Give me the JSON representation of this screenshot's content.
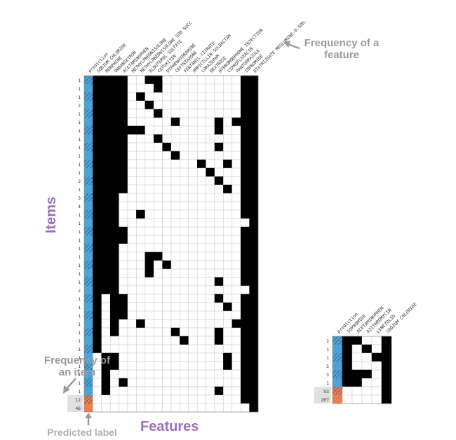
{
  "annotations": {
    "frequency_of_feature": "Frequency of a feature",
    "frequency_of_item": "Frequency of an item",
    "predicted_label": "Predicted label",
    "features": "Features",
    "items": "Items"
  },
  "colors": {
    "blue": "#4ea3d6",
    "orange": "#ec7d4e",
    "filled": "#000000",
    "grid": "#c8c8c8",
    "purple": "#9b6fbf",
    "grey": "#9a9a9a"
  },
  "left_matrix": {
    "columns": [
      "prediction",
      "SODIUM CHLORIDE",
      "MORPHINE",
      "ONDANSETRON",
      "ACETAMINOPHEN",
      "METHYLPREDNISOLONE",
      "METHYLPREDNISOLONE SOD SUCC",
      "ALBUTEROL SULFATE",
      "CEFOXITIN",
      "DIPHENHYDRAMINE",
      "CEFTRIAXONE",
      "FENTANYL CITRATE",
      "AMPICILLIN-SULBACTAM",
      "LORAZEPAM",
      "DEXTROSE",
      "HYDROMORPHONE INJECTION",
      "CIPROFLOXACIN",
      "PANTOPRAZOLE",
      "IOPROMIDE",
      "DIATRIZOATE MEGLUMINE-D.SOD."
    ],
    "rows": [
      {
        "freq": "1",
        "pred": "b",
        "h": 1,
        "c": [
          1,
          1,
          1,
          1,
          0,
          0,
          1,
          1,
          0,
          0,
          0,
          0,
          0,
          0,
          0,
          0,
          0,
          1,
          1
        ]
      },
      {
        "freq": "1",
        "pred": "b",
        "h": 0,
        "c": [
          1,
          1,
          1,
          1,
          0,
          0,
          0,
          1,
          0,
          0,
          0,
          0,
          0,
          0,
          0,
          0,
          0,
          1,
          1
        ]
      },
      {
        "freq": "1",
        "pred": "b",
        "h": 1,
        "c": [
          1,
          1,
          1,
          1,
          0,
          1,
          0,
          0,
          0,
          0,
          0,
          0,
          0,
          0,
          0,
          0,
          0,
          1,
          1
        ]
      },
      {
        "freq": "2",
        "pred": "b",
        "h": 0,
        "c": [
          1,
          1,
          1,
          1,
          0,
          0,
          1,
          0,
          0,
          0,
          0,
          0,
          0,
          0,
          0,
          0,
          0,
          1,
          1
        ]
      },
      {
        "freq": "1",
        "pred": "b",
        "h": 1,
        "c": [
          1,
          1,
          1,
          1,
          0,
          0,
          0,
          1,
          0,
          0,
          0,
          0,
          0,
          0,
          0,
          0,
          0,
          1,
          1
        ]
      },
      {
        "freq": "1",
        "pred": "b",
        "h": 0,
        "c": [
          1,
          1,
          1,
          1,
          0,
          0,
          0,
          0,
          0,
          1,
          0,
          0,
          0,
          0,
          1,
          0,
          1,
          1,
          1
        ]
      },
      {
        "freq": "1",
        "pred": "b",
        "h": 1,
        "c": [
          1,
          1,
          1,
          1,
          1,
          1,
          0,
          0,
          0,
          0,
          0,
          0,
          0,
          0,
          1,
          0,
          0,
          1,
          1
        ]
      },
      {
        "freq": "1",
        "pred": "b",
        "h": 0,
        "c": [
          1,
          1,
          1,
          1,
          0,
          0,
          0,
          1,
          0,
          0,
          0,
          0,
          0,
          0,
          0,
          0,
          0,
          1,
          1
        ]
      },
      {
        "freq": "1",
        "pred": "b",
        "h": 1,
        "c": [
          1,
          1,
          1,
          1,
          0,
          0,
          0,
          0,
          1,
          0,
          0,
          0,
          0,
          0,
          1,
          0,
          0,
          1,
          1
        ]
      },
      {
        "freq": "1",
        "pred": "b",
        "h": 0,
        "c": [
          1,
          1,
          1,
          1,
          0,
          0,
          0,
          0,
          0,
          1,
          0,
          0,
          0,
          0,
          0,
          0,
          0,
          1,
          1
        ]
      },
      {
        "freq": "1",
        "pred": "b",
        "h": 1,
        "c": [
          1,
          1,
          1,
          1,
          0,
          0,
          0,
          0,
          0,
          0,
          0,
          0,
          1,
          0,
          0,
          1,
          0,
          1,
          1
        ]
      },
      {
        "freq": "1",
        "pred": "b",
        "h": 0,
        "c": [
          1,
          1,
          1,
          1,
          0,
          0,
          0,
          0,
          0,
          0,
          0,
          0,
          0,
          1,
          0,
          0,
          0,
          1,
          1
        ]
      },
      {
        "freq": "2",
        "pred": "b",
        "h": 1,
        "c": [
          1,
          1,
          1,
          1,
          0,
          0,
          0,
          0,
          0,
          0,
          0,
          0,
          0,
          0,
          1,
          0,
          0,
          1,
          1
        ]
      },
      {
        "freq": "1",
        "pred": "b",
        "h": 0,
        "c": [
          1,
          1,
          1,
          1,
          0,
          0,
          0,
          0,
          0,
          0,
          0,
          0,
          0,
          0,
          0,
          1,
          0,
          1,
          1
        ]
      },
      {
        "freq": "3",
        "pred": "b",
        "h": 1,
        "c": [
          1,
          1,
          1,
          0,
          0,
          0,
          0,
          0,
          0,
          0,
          0,
          0,
          0,
          0,
          0,
          0,
          0,
          1,
          1
        ]
      },
      {
        "freq": "4",
        "pred": "b",
        "h": 0,
        "c": [
          1,
          1,
          1,
          0,
          0,
          0,
          0,
          0,
          0,
          0,
          0,
          0,
          0,
          0,
          0,
          0,
          0,
          1,
          1
        ]
      },
      {
        "freq": "1",
        "pred": "b",
        "h": 1,
        "c": [
          1,
          1,
          1,
          0,
          0,
          1,
          0,
          0,
          0,
          0,
          0,
          0,
          0,
          0,
          0,
          0,
          0,
          1,
          1
        ]
      },
      {
        "freq": "1",
        "pred": "b",
        "h": 0,
        "c": [
          1,
          1,
          1,
          0,
          0,
          0,
          0,
          0,
          0,
          0,
          0,
          0,
          0,
          0,
          0,
          0,
          0,
          0,
          1
        ]
      },
      {
        "freq": "1",
        "pred": "b",
        "h": 1,
        "c": [
          1,
          1,
          1,
          1,
          0,
          0,
          0,
          0,
          0,
          0,
          0,
          0,
          0,
          0,
          0,
          0,
          0,
          1,
          1
        ]
      },
      {
        "freq": "1",
        "pred": "b",
        "h": 0,
        "c": [
          1,
          1,
          1,
          1,
          0,
          0,
          0,
          0,
          0,
          0,
          0,
          0,
          0,
          0,
          0,
          0,
          0,
          1,
          1
        ]
      },
      {
        "freq": "1",
        "pred": "b",
        "h": 1,
        "c": [
          1,
          1,
          1,
          0,
          0,
          0,
          0,
          0,
          0,
          0,
          0,
          0,
          0,
          0,
          0,
          0,
          0,
          1,
          1
        ]
      },
      {
        "freq": "1",
        "pred": "b",
        "h": 0,
        "c": [
          1,
          1,
          1,
          0,
          0,
          0,
          1,
          1,
          0,
          0,
          0,
          0,
          0,
          0,
          0,
          0,
          0,
          1,
          1
        ]
      },
      {
        "freq": "1",
        "pred": "b",
        "h": 1,
        "c": [
          1,
          1,
          1,
          0,
          0,
          0,
          1,
          0,
          1,
          0,
          0,
          0,
          0,
          0,
          0,
          0,
          0,
          1,
          1
        ]
      },
      {
        "freq": "1",
        "pred": "b",
        "h": 0,
        "c": [
          1,
          1,
          1,
          0,
          0,
          0,
          1,
          0,
          0,
          0,
          0,
          0,
          0,
          0,
          0,
          0,
          0,
          1,
          1
        ]
      },
      {
        "freq": "1",
        "pred": "b",
        "h": 1,
        "c": [
          1,
          1,
          1,
          0,
          0,
          0,
          0,
          0,
          0,
          0,
          0,
          0,
          0,
          0,
          1,
          0,
          0,
          1,
          1
        ]
      },
      {
        "freq": "2",
        "pred": "b",
        "h": 0,
        "c": [
          1,
          1,
          1,
          0,
          0,
          0,
          0,
          0,
          0,
          0,
          0,
          0,
          0,
          0,
          0,
          0,
          0,
          0,
          1
        ]
      },
      {
        "freq": "1",
        "pred": "b",
        "h": 1,
        "c": [
          1,
          0,
          1,
          1,
          0,
          0,
          0,
          0,
          0,
          0,
          0,
          0,
          0,
          0,
          1,
          0,
          0,
          1,
          1
        ]
      },
      {
        "freq": "1",
        "pred": "b",
        "h": 0,
        "c": [
          1,
          0,
          1,
          1,
          0,
          0,
          0,
          0,
          0,
          0,
          0,
          0,
          0,
          0,
          0,
          1,
          0,
          1,
          1
        ]
      },
      {
        "freq": "1",
        "pred": "b",
        "h": 1,
        "c": [
          1,
          0,
          1,
          1,
          0,
          0,
          0,
          0,
          0,
          0,
          0,
          0,
          0,
          0,
          0,
          0,
          0,
          1,
          1
        ]
      },
      {
        "freq": "1",
        "pred": "b",
        "h": 0,
        "c": [
          1,
          0,
          1,
          0,
          0,
          1,
          0,
          0,
          0,
          0,
          0,
          0,
          0,
          0,
          0,
          0,
          1,
          1,
          1
        ]
      },
      {
        "freq": "1",
        "pred": "b",
        "h": 1,
        "c": [
          1,
          0,
          1,
          0,
          0,
          0,
          0,
          0,
          0,
          1,
          0,
          0,
          0,
          0,
          1,
          0,
          0,
          1,
          1
        ]
      },
      {
        "freq": "1",
        "pred": "b",
        "h": 0,
        "c": [
          1,
          0,
          0,
          0,
          0,
          0,
          0,
          0,
          0,
          0,
          1,
          0,
          0,
          0,
          1,
          0,
          0,
          1,
          1
        ]
      },
      {
        "freq": "1",
        "pred": "b",
        "h": 1,
        "c": [
          1,
          0,
          0,
          0,
          0,
          0,
          0,
          0,
          0,
          0,
          0,
          0,
          0,
          0,
          0,
          0,
          0,
          1,
          1
        ]
      },
      {
        "freq": "1",
        "pred": "b",
        "h": 0,
        "c": [
          0,
          1,
          1,
          0,
          0,
          0,
          0,
          0,
          0,
          0,
          0,
          0,
          0,
          0,
          0,
          1,
          0,
          1,
          1
        ]
      },
      {
        "freq": "1",
        "pred": "b",
        "h": 1,
        "c": [
          0,
          1,
          1,
          0,
          0,
          0,
          0,
          0,
          0,
          0,
          0,
          0,
          0,
          0,
          0,
          1,
          0,
          1,
          1
        ]
      },
      {
        "freq": "1",
        "pred": "b",
        "h": 0,
        "c": [
          0,
          1,
          0,
          0,
          0,
          0,
          0,
          0,
          0,
          0,
          0,
          0,
          0,
          0,
          0,
          0,
          0,
          1,
          1
        ]
      },
      {
        "freq": "1",
        "pred": "b",
        "h": 1,
        "c": [
          0,
          1,
          0,
          1,
          0,
          0,
          0,
          0,
          0,
          0,
          0,
          0,
          0,
          0,
          0,
          0,
          0,
          1,
          1
        ]
      },
      {
        "freq": "1",
        "pred": "b",
        "h": 0,
        "c": [
          0,
          1,
          0,
          0,
          0,
          0,
          0,
          0,
          0,
          0,
          0,
          0,
          0,
          0,
          1,
          0,
          0,
          1,
          1
        ]
      },
      {
        "freq": "12",
        "pred": "o",
        "h": 1,
        "c": [
          0,
          0,
          0,
          0,
          0,
          0,
          0,
          0,
          0,
          0,
          0,
          0,
          0,
          0,
          0,
          0,
          0,
          1,
          1
        ]
      },
      {
        "freq": "46",
        "pred": "o",
        "h": 0,
        "c": [
          0,
          0,
          0,
          0,
          0,
          0,
          0,
          0,
          0,
          0,
          0,
          0,
          0,
          0,
          0,
          0,
          0,
          0,
          1
        ]
      }
    ]
  },
  "right_matrix": {
    "columns": [
      "prediction",
      "IOPROMIDE",
      "ACETAMINOPHEN",
      "AZITHROMYCIN",
      "LINEZOLID",
      "SODIUM CHLORIDE"
    ],
    "rows": [
      {
        "freq": "2",
        "pred": "b",
        "h": 1,
        "c": [
          1,
          1,
          0,
          0,
          1
        ]
      },
      {
        "freq": "1",
        "pred": "b",
        "h": 0,
        "c": [
          1,
          0,
          1,
          0,
          1
        ]
      },
      {
        "freq": "1",
        "pred": "b",
        "h": 1,
        "c": [
          1,
          0,
          0,
          1,
          1
        ]
      },
      {
        "freq": "5",
        "pred": "b",
        "h": 0,
        "c": [
          1,
          0,
          0,
          0,
          1
        ]
      },
      {
        "freq": "3",
        "pred": "b",
        "h": 1,
        "c": [
          1,
          1,
          1,
          0,
          1
        ]
      },
      {
        "freq": "1",
        "pred": "b",
        "h": 0,
        "c": [
          1,
          1,
          0,
          0,
          1
        ]
      },
      {
        "freq": "93",
        "pred": "o",
        "h": 1,
        "c": [
          0,
          0,
          0,
          0,
          1
        ]
      },
      {
        "freq": "207",
        "pred": "o",
        "h": 0,
        "c": [
          0,
          0,
          0,
          0,
          1
        ]
      }
    ]
  }
}
